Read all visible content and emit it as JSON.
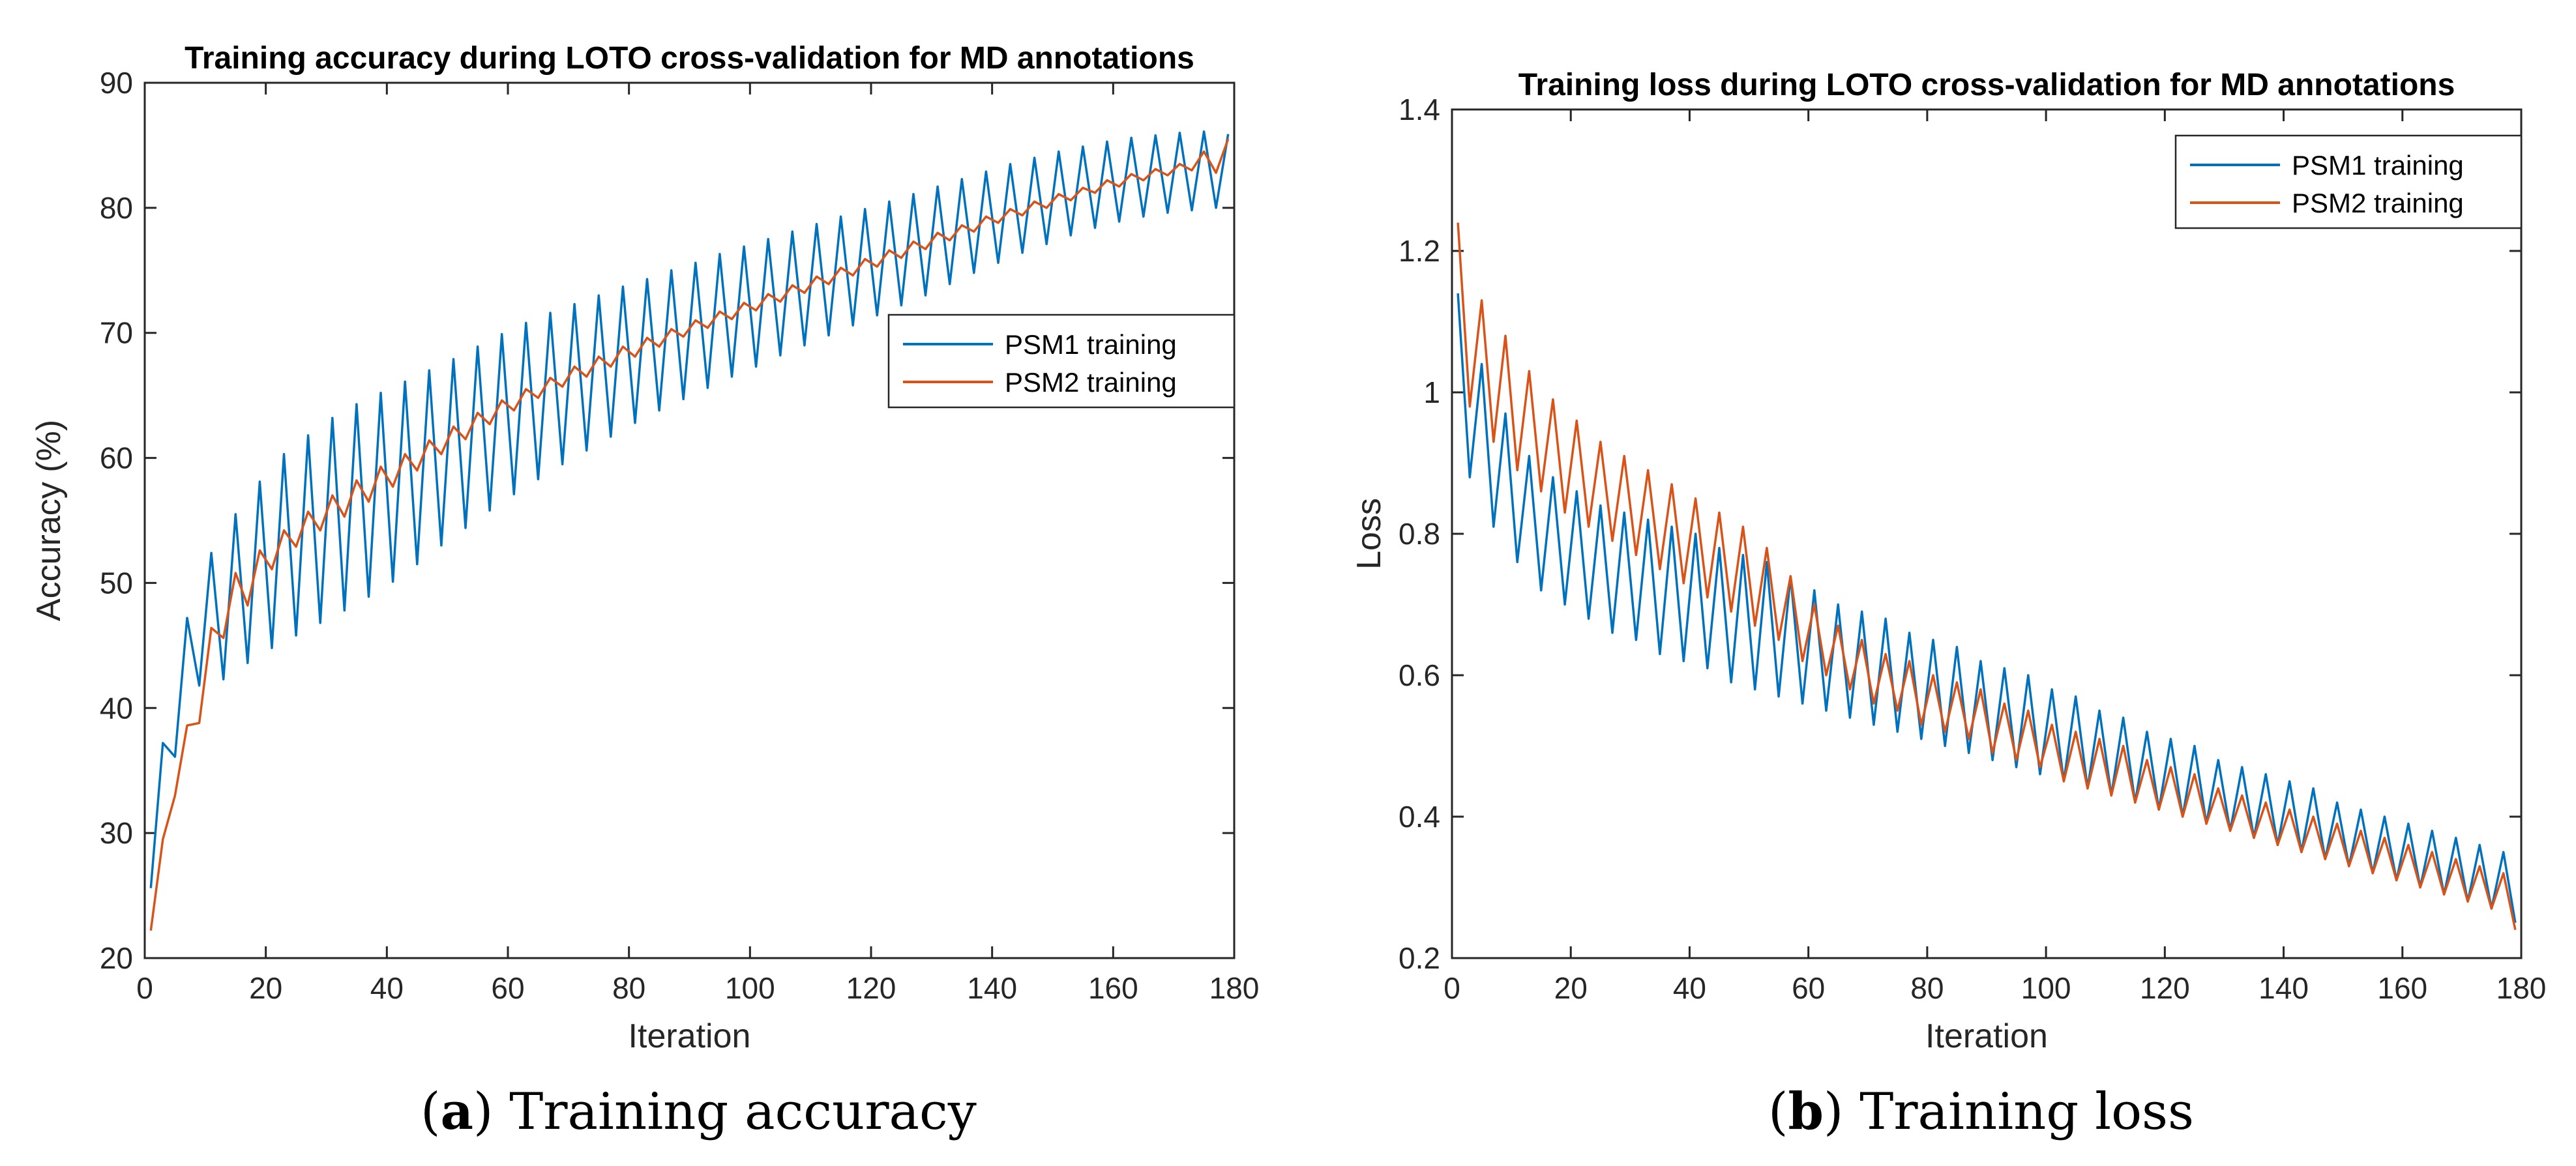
{
  "chart_data": [
    {
      "type": "line",
      "title": "Training accuracy during LOTO cross-validation for MD annotations",
      "xlabel": "Iteration",
      "ylabel": "Accuracy (%)",
      "xlim": [
        0,
        180
      ],
      "ylim": [
        20,
        90
      ],
      "xticks": [
        0,
        20,
        40,
        60,
        80,
        100,
        120,
        140,
        160,
        180
      ],
      "yticks": [
        20,
        30,
        40,
        50,
        60,
        70,
        80,
        90
      ],
      "legend_position": "upper-middle-right",
      "series": [
        {
          "name": "PSM1 training",
          "color": "#0072BD",
          "x": [
            1,
            3,
            5,
            7,
            9,
            11,
            13,
            15,
            17,
            19,
            21,
            23,
            25,
            27,
            29,
            31,
            33,
            35,
            37,
            39,
            41,
            43,
            45,
            47,
            49,
            51,
            53,
            55,
            57,
            59,
            61,
            63,
            65,
            67,
            69,
            71,
            73,
            75,
            77,
            79,
            81,
            83,
            85,
            87,
            89,
            91,
            93,
            95,
            97,
            99,
            101,
            103,
            105,
            107,
            109,
            111,
            113,
            115,
            117,
            119,
            121,
            123,
            125,
            127,
            129,
            131,
            133,
            135,
            137,
            139,
            141,
            143,
            145,
            147,
            149,
            151,
            153,
            155,
            157,
            159,
            161,
            163,
            165,
            167,
            169,
            171,
            173,
            175,
            177,
            179
          ],
          "values": [
            25.6,
            37.2,
            36.1,
            47.2,
            41.8,
            52.4,
            42.3,
            55.5,
            43.6,
            58.1,
            44.8,
            60.3,
            45.8,
            61.8,
            46.8,
            63.2,
            47.8,
            64.3,
            48.9,
            65.2,
            50.1,
            66.1,
            51.5,
            67.0,
            53.0,
            67.9,
            54.4,
            68.9,
            55.8,
            69.9,
            57.1,
            70.8,
            58.3,
            71.6,
            59.5,
            72.3,
            60.6,
            73.0,
            61.7,
            73.7,
            62.8,
            74.3,
            63.8,
            75.0,
            64.7,
            75.6,
            65.6,
            76.3,
            66.5,
            76.9,
            67.3,
            77.5,
            68.2,
            78.1,
            69.0,
            78.7,
            69.8,
            79.3,
            70.6,
            79.9,
            71.4,
            80.5,
            72.2,
            81.1,
            73.0,
            81.7,
            73.9,
            82.3,
            74.8,
            82.9,
            75.6,
            83.5,
            76.4,
            84.0,
            77.1,
            84.5,
            77.8,
            84.9,
            78.4,
            85.3,
            78.9,
            85.6,
            79.3,
            85.8,
            79.6,
            86.0,
            79.8,
            86.1,
            80.0,
            85.9
          ]
        },
        {
          "name": "PSM2 training",
          "color": "#D95319",
          "x": [
            1,
            3,
            5,
            7,
            9,
            11,
            13,
            15,
            17,
            19,
            21,
            23,
            25,
            27,
            29,
            31,
            33,
            35,
            37,
            39,
            41,
            43,
            45,
            47,
            49,
            51,
            53,
            55,
            57,
            59,
            61,
            63,
            65,
            67,
            69,
            71,
            73,
            75,
            77,
            79,
            81,
            83,
            85,
            87,
            89,
            91,
            93,
            95,
            97,
            99,
            101,
            103,
            105,
            107,
            109,
            111,
            113,
            115,
            117,
            119,
            121,
            123,
            125,
            127,
            129,
            131,
            133,
            135,
            137,
            139,
            141,
            143,
            145,
            147,
            149,
            151,
            153,
            155,
            157,
            159,
            161,
            163,
            165,
            167,
            169,
            171,
            173,
            175,
            177,
            179
          ],
          "values": [
            22.2,
            29.5,
            33.0,
            38.6,
            38.8,
            46.4,
            45.6,
            50.8,
            48.2,
            52.6,
            51.1,
            54.2,
            52.9,
            55.7,
            54.2,
            57.0,
            55.3,
            58.2,
            56.5,
            59.3,
            57.7,
            60.3,
            59.0,
            61.4,
            60.3,
            62.5,
            61.5,
            63.6,
            62.7,
            64.6,
            63.8,
            65.5,
            64.8,
            66.4,
            65.7,
            67.3,
            66.5,
            68.1,
            67.3,
            68.9,
            68.1,
            69.6,
            68.9,
            70.3,
            69.7,
            71.0,
            70.4,
            71.7,
            71.1,
            72.4,
            71.8,
            73.1,
            72.5,
            73.8,
            73.2,
            74.5,
            73.9,
            75.2,
            74.6,
            75.9,
            75.3,
            76.6,
            76.0,
            77.3,
            76.7,
            78.0,
            77.4,
            78.6,
            78.1,
            79.3,
            78.8,
            79.9,
            79.4,
            80.5,
            80.0,
            81.1,
            80.6,
            81.6,
            81.2,
            82.2,
            81.7,
            82.7,
            82.2,
            83.1,
            82.6,
            83.5,
            83.0,
            84.5,
            82.8,
            85.5
          ]
        }
      ]
    },
    {
      "type": "line",
      "title": "Training loss during LOTO cross-validation for MD annotations",
      "xlabel": "Iteration",
      "ylabel": "Loss",
      "xlim": [
        0,
        180
      ],
      "ylim": [
        0.2,
        1.4
      ],
      "xticks": [
        0,
        20,
        40,
        60,
        80,
        100,
        120,
        140,
        160,
        180
      ],
      "yticks": [
        0.2,
        0.4,
        0.6,
        0.8,
        1,
        1.2,
        1.4
      ],
      "legend_position": "top-right",
      "series": [
        {
          "name": "PSM1 training",
          "color": "#0072BD",
          "x": [
            1,
            3,
            5,
            7,
            9,
            11,
            13,
            15,
            17,
            19,
            21,
            23,
            25,
            27,
            29,
            31,
            33,
            35,
            37,
            39,
            41,
            43,
            45,
            47,
            49,
            51,
            53,
            55,
            57,
            59,
            61,
            63,
            65,
            67,
            69,
            71,
            73,
            75,
            77,
            79,
            81,
            83,
            85,
            87,
            89,
            91,
            93,
            95,
            97,
            99,
            101,
            103,
            105,
            107,
            109,
            111,
            113,
            115,
            117,
            119,
            121,
            123,
            125,
            127,
            129,
            131,
            133,
            135,
            137,
            139,
            141,
            143,
            145,
            147,
            149,
            151,
            153,
            155,
            157,
            159,
            161,
            163,
            165,
            167,
            169,
            171,
            173,
            175,
            177,
            179
          ],
          "values": [
            1.14,
            0.88,
            1.04,
            0.81,
            0.97,
            0.76,
            0.91,
            0.72,
            0.88,
            0.7,
            0.86,
            0.68,
            0.84,
            0.66,
            0.83,
            0.65,
            0.82,
            0.63,
            0.81,
            0.62,
            0.8,
            0.61,
            0.78,
            0.59,
            0.77,
            0.58,
            0.76,
            0.57,
            0.74,
            0.56,
            0.72,
            0.55,
            0.7,
            0.54,
            0.69,
            0.53,
            0.68,
            0.52,
            0.66,
            0.51,
            0.65,
            0.5,
            0.64,
            0.49,
            0.62,
            0.48,
            0.61,
            0.47,
            0.6,
            0.46,
            0.58,
            0.45,
            0.57,
            0.44,
            0.55,
            0.43,
            0.54,
            0.42,
            0.52,
            0.41,
            0.51,
            0.4,
            0.5,
            0.39,
            0.48,
            0.38,
            0.47,
            0.37,
            0.46,
            0.36,
            0.45,
            0.35,
            0.44,
            0.34,
            0.42,
            0.33,
            0.41,
            0.32,
            0.4,
            0.31,
            0.39,
            0.3,
            0.38,
            0.29,
            0.37,
            0.28,
            0.36,
            0.27,
            0.35,
            0.25
          ]
        },
        {
          "name": "PSM2 training",
          "color": "#D95319",
          "x": [
            1,
            3,
            5,
            7,
            9,
            11,
            13,
            15,
            17,
            19,
            21,
            23,
            25,
            27,
            29,
            31,
            33,
            35,
            37,
            39,
            41,
            43,
            45,
            47,
            49,
            51,
            53,
            55,
            57,
            59,
            61,
            63,
            65,
            67,
            69,
            71,
            73,
            75,
            77,
            79,
            81,
            83,
            85,
            87,
            89,
            91,
            93,
            95,
            97,
            99,
            101,
            103,
            105,
            107,
            109,
            111,
            113,
            115,
            117,
            119,
            121,
            123,
            125,
            127,
            129,
            131,
            133,
            135,
            137,
            139,
            141,
            143,
            145,
            147,
            149,
            151,
            153,
            155,
            157,
            159,
            161,
            163,
            165,
            167,
            169,
            171,
            173,
            175,
            177,
            179
          ],
          "values": [
            1.24,
            0.98,
            1.13,
            0.93,
            1.08,
            0.89,
            1.03,
            0.86,
            0.99,
            0.83,
            0.96,
            0.81,
            0.93,
            0.79,
            0.91,
            0.77,
            0.89,
            0.75,
            0.87,
            0.73,
            0.85,
            0.71,
            0.83,
            0.69,
            0.81,
            0.67,
            0.78,
            0.65,
            0.74,
            0.62,
            0.7,
            0.6,
            0.67,
            0.58,
            0.65,
            0.56,
            0.63,
            0.55,
            0.62,
            0.53,
            0.6,
            0.52,
            0.59,
            0.51,
            0.58,
            0.49,
            0.56,
            0.48,
            0.55,
            0.47,
            0.53,
            0.45,
            0.52,
            0.44,
            0.51,
            0.43,
            0.5,
            0.42,
            0.48,
            0.41,
            0.47,
            0.4,
            0.46,
            0.39,
            0.44,
            0.38,
            0.43,
            0.37,
            0.42,
            0.36,
            0.41,
            0.35,
            0.4,
            0.34,
            0.39,
            0.33,
            0.38,
            0.32,
            0.37,
            0.31,
            0.36,
            0.3,
            0.35,
            0.29,
            0.34,
            0.28,
            0.33,
            0.27,
            0.32,
            0.24
          ]
        }
      ]
    }
  ],
  "captions": [
    {
      "letter": "a",
      "text": "Training accuracy"
    },
    {
      "letter": "b",
      "text": "Training loss"
    }
  ]
}
